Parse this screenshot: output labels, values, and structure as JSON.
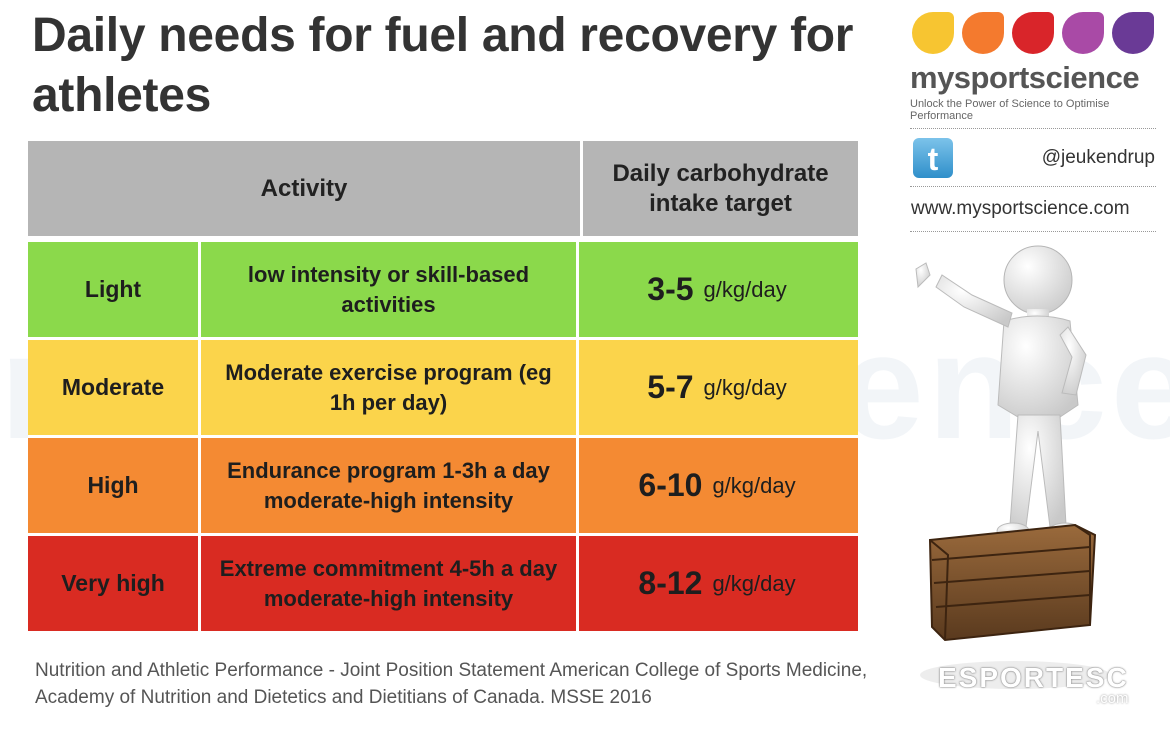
{
  "title": "Daily needs for fuel and recovery for athletes",
  "watermark": "mysportscience",
  "table": {
    "header_activity": "Activity",
    "header_target": "Daily carbohydrate intake target",
    "rows": [
      {
        "level": "Light",
        "description": "low intensity or skill-based activities",
        "value": "3-5",
        "unit": "g/kg/day",
        "color": "#8bd94b"
      },
      {
        "level": "Moderate",
        "description": "Moderate exercise program (eg 1h per day)",
        "value": "5-7",
        "unit": "g/kg/day",
        "color": "#fbd44b"
      },
      {
        "level": "High",
        "description": "Endurance program 1-3h a day moderate-high intensity",
        "value": "6-10",
        "unit": "g/kg/day",
        "color": "#f48a33"
      },
      {
        "level": "Very high",
        "description": "Extreme commitment 4-5h a day moderate-high intensity",
        "value": "8-12",
        "unit": "g/kg/day",
        "color": "#d92b22"
      }
    ]
  },
  "citation": "Nutrition and Athletic Performance - Joint Position Statement American College of Sports Medicine, Academy of Nutrition and Dietetics and Dietitians of Canada. MSSE 2016",
  "brand": {
    "name": "mysportscience",
    "tagline": "Unlock the Power of Science to Optimise Performance",
    "drop_colors": [
      "#f7c531",
      "#f47a2e",
      "#d9252a",
      "#a94aa6",
      "#6a3a96"
    ]
  },
  "twitter": {
    "icon": "twitter-icon",
    "handle": "@jeukendrup"
  },
  "website": "www.mysportscience.com",
  "credit": {
    "name": "ESPORTESC",
    "suffix": ".com"
  }
}
